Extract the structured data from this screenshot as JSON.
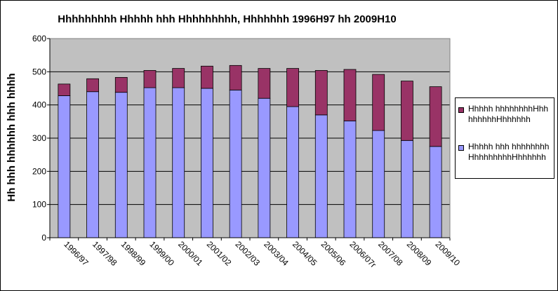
{
  "chart_data": {
    "type": "bar",
    "stacked": true,
    "title": "Hhhhhhhhh Hhhhh hhh Hhhhhhhhh, Hhhhhhh 1996H97 hh 2009H10",
    "xlabel": "",
    "ylabel": "Hh hhh hhhhhh hhh hhhh",
    "ylim": [
      0,
      600
    ],
    "yticks": [
      "0",
      "100",
      "200",
      "300",
      "400",
      "500",
      "600"
    ],
    "grid": true,
    "legend_position": "right",
    "categories": [
      "1996/97",
      "1997/98",
      "1998/99",
      "1999/00",
      "2000/01",
      "2001/02",
      "2002/03",
      "2003/04",
      "2004/05",
      "2005/06",
      "2006/07r",
      "2007/08",
      "2008/09",
      "2009/10"
    ],
    "series": [
      {
        "name": "Hhhhh hhh hhhhhhhhHhhhhhhhhHhhhhhh",
        "color": "#9999ff",
        "values": [
          428,
          440,
          438,
          452,
          452,
          450,
          445,
          420,
          395,
          370,
          352,
          323,
          293,
          275
        ]
      },
      {
        "name": "Hhhhh hhhhhhhhHhhhhhhhhHhhhhhh",
        "color": "#993366",
        "values": [
          35,
          39,
          45,
          52,
          58,
          67,
          74,
          90,
          115,
          134,
          155,
          169,
          179,
          180
        ]
      }
    ]
  },
  "colors": {
    "plot_background": "#c0c0c0",
    "gridline": "#000000"
  }
}
